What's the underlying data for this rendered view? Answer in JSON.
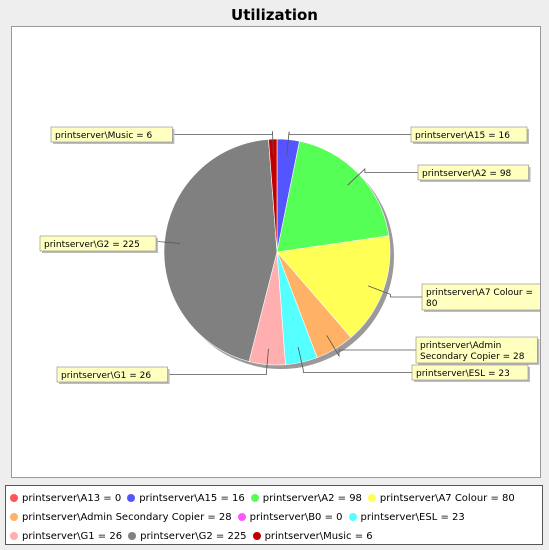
{
  "chart_data": {
    "type": "pie",
    "title": "Utilization",
    "start_angle_deg": 90,
    "direction": "clockwise",
    "legend_position": "bottom",
    "slices": [
      {
        "label": "printserver\\A13 = 0",
        "name": "printserver\\A13",
        "value": 0,
        "color": "#ff5555",
        "show_label": false
      },
      {
        "label": "printserver\\A15 = 16",
        "name": "printserver\\A15",
        "value": 16,
        "color": "#5555ff",
        "show_label": true,
        "label_lines": [
          "printserver\\A15 = 16"
        ]
      },
      {
        "label": "printserver\\A2 = 98",
        "name": "printserver\\A2",
        "value": 98,
        "color": "#55ff55",
        "show_label": true,
        "label_lines": [
          "printserver\\A2 = 98"
        ]
      },
      {
        "label": "printserver\\A7 Colour = 80",
        "name": "printserver\\A7 Colour",
        "value": 80,
        "color": "#ffff55",
        "show_label": true,
        "label_lines": [
          "printserver\\A7 Colour =",
          "80"
        ]
      },
      {
        "label": "printserver\\Admin Secondary Copier = 28",
        "name": "printserver\\Admin Secondary Copier",
        "value": 28,
        "color": "#ffb266",
        "show_label": true,
        "label_lines": [
          "printserver\\Admin",
          "Secondary Copier = 28"
        ]
      },
      {
        "label": "printserver\\B0 = 0",
        "name": "printserver\\B0",
        "value": 0,
        "color": "#ff55ff",
        "show_label": false
      },
      {
        "label": "printserver\\ESL = 23",
        "name": "printserver\\ESL",
        "value": 23,
        "color": "#55ffff",
        "show_label": true,
        "label_lines": [
          "printserver\\ESL = 23"
        ]
      },
      {
        "label": "printserver\\G1 = 26",
        "name": "printserver\\G1",
        "value": 26,
        "color": "#ffafaf",
        "show_label": true,
        "label_lines": [
          "printserver\\G1 = 26"
        ]
      },
      {
        "label": "printserver\\G2 = 225",
        "name": "printserver\\G2",
        "value": 225,
        "color": "#808080",
        "show_label": true,
        "label_lines": [
          "printserver\\G2 = 225"
        ]
      },
      {
        "label": "printserver\\Music = 6",
        "name": "printserver\\Music",
        "value": 6,
        "color": "#c00000",
        "show_label": true,
        "label_lines": [
          "printserver\\Music = 6"
        ]
      }
    ]
  }
}
